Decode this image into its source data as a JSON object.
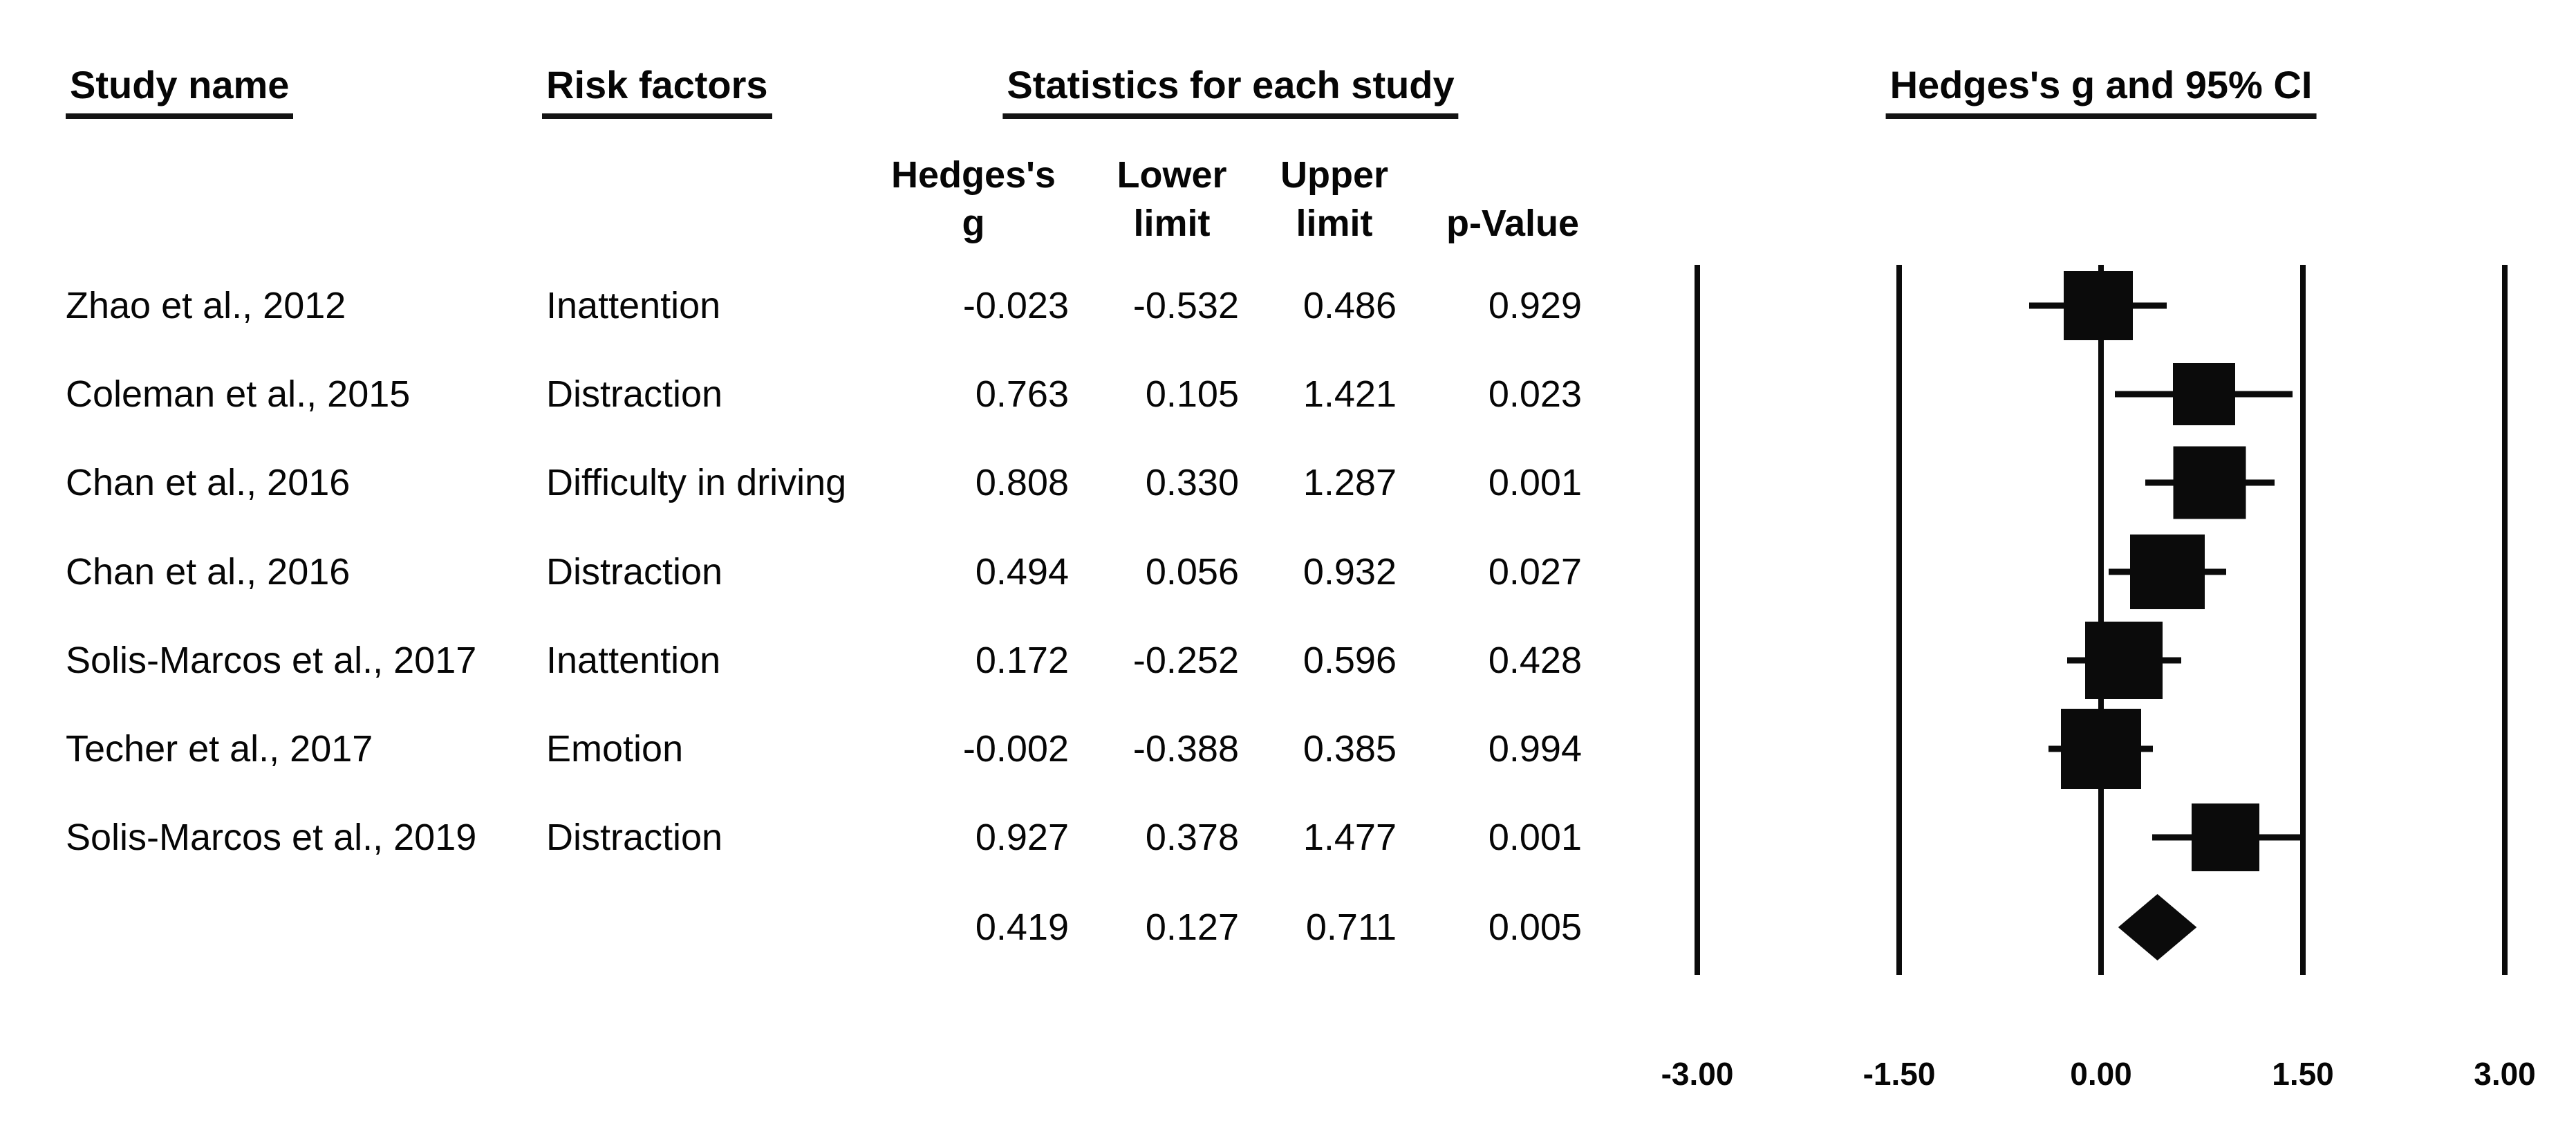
{
  "header": {
    "study": "Study name",
    "risk": "Risk factors",
    "stats": "Statistics for each study",
    "plot": "Hedges's g and 95% CI",
    "sub": {
      "g_line1": "Hedges's",
      "g_line2": "g",
      "lower_line1": "Lower",
      "lower_line2": "limit",
      "upper_line1": "Upper",
      "upper_line2": "limit",
      "p": "p-Value"
    }
  },
  "chart_data": {
    "type": "forest",
    "title": "Hedges's g and 95% CI",
    "effect_measure": "Hedges's g",
    "xlim": [
      -3,
      3
    ],
    "x_ticks": [
      -3.0,
      -1.5,
      0.0,
      1.5,
      3.0
    ],
    "x_tick_labels": [
      "-3.00",
      "-1.50",
      "0.00",
      "1.50",
      "3.00"
    ],
    "columns": [
      "Study name",
      "Risk factors",
      "Hedges's g",
      "Lower limit",
      "Upper limit",
      "p-Value"
    ],
    "studies": [
      {
        "study": "Zhao et al., 2012",
        "risk_factor": "Inattention",
        "g": -0.023,
        "lower": -0.532,
        "upper": 0.486,
        "p": 0.929,
        "marker_px": 100
      },
      {
        "study": "Coleman et al., 2015",
        "risk_factor": "Distraction",
        "g": 0.763,
        "lower": 0.105,
        "upper": 1.421,
        "p": 0.023,
        "marker_px": 90
      },
      {
        "study": "Chan et al., 2016",
        "risk_factor": "Difficulty in driving",
        "g": 0.808,
        "lower": 0.33,
        "upper": 1.287,
        "p": 0.001,
        "marker_px": 105
      },
      {
        "study": "Chan et al., 2016",
        "risk_factor": "Distraction",
        "g": 0.494,
        "lower": 0.056,
        "upper": 0.932,
        "p": 0.027,
        "marker_px": 108
      },
      {
        "study": "Solis-Marcos et al., 2017",
        "risk_factor": "Inattention",
        "g": 0.172,
        "lower": -0.252,
        "upper": 0.596,
        "p": 0.428,
        "marker_px": 112
      },
      {
        "study": "Techer et al., 2017",
        "risk_factor": "Emotion",
        "g": -0.002,
        "lower": -0.388,
        "upper": 0.385,
        "p": 0.994,
        "marker_px": 116
      },
      {
        "study": "Solis-Marcos et al., 2019",
        "risk_factor": "Distraction",
        "g": 0.927,
        "lower": 0.378,
        "upper": 1.477,
        "p": 0.001,
        "marker_px": 98
      }
    ],
    "summary": {
      "g": 0.419,
      "lower": 0.127,
      "upper": 0.711,
      "p": 0.005
    }
  }
}
